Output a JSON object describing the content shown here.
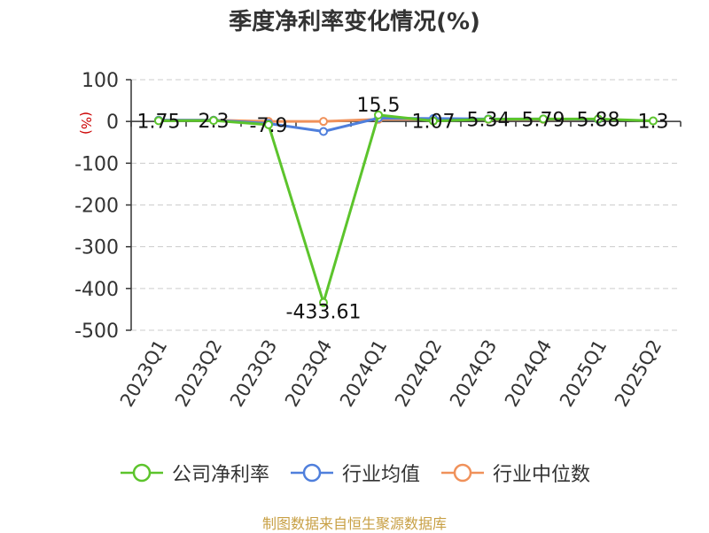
{
  "chart_data": {
    "type": "line",
    "title": "季度净利率变化情况(%)",
    "ylabel": "(%)",
    "categories": [
      "2023Q1",
      "2023Q2",
      "2023Q3",
      "2023Q4",
      "2024Q1",
      "2024Q2",
      "2024Q3",
      "2024Q4",
      "2025Q1",
      "2025Q2"
    ],
    "ylim": [
      -500,
      100
    ],
    "yticks": [
      100,
      0,
      -100,
      -200,
      -300,
      -400,
      -500
    ],
    "grid": true,
    "legend_position": "bottom",
    "series": [
      {
        "name": "公司净利率",
        "color": "#5cc42c",
        "values": [
          1.75,
          2.3,
          -7.9,
          -433.61,
          15.5,
          1.07,
          5.34,
          5.79,
          5.88,
          1.3
        ],
        "labels": [
          "1.75",
          "2.3",
          "-7.9",
          "-433.61",
          "15.5",
          "1.07",
          "5.34",
          "5.79",
          "5.88",
          "1.3"
        ]
      },
      {
        "name": "行业均值",
        "color": "#4f7fdc",
        "values": [
          3,
          3,
          -5,
          -24,
          8,
          7,
          6,
          6,
          5,
          null
        ]
      },
      {
        "name": "行业中位数",
        "color": "#f0915a",
        "values": [
          3,
          3,
          0,
          0,
          5,
          5,
          5,
          5,
          5,
          null
        ]
      }
    ]
  },
  "source": "制图数据来自恒生聚源数据库"
}
